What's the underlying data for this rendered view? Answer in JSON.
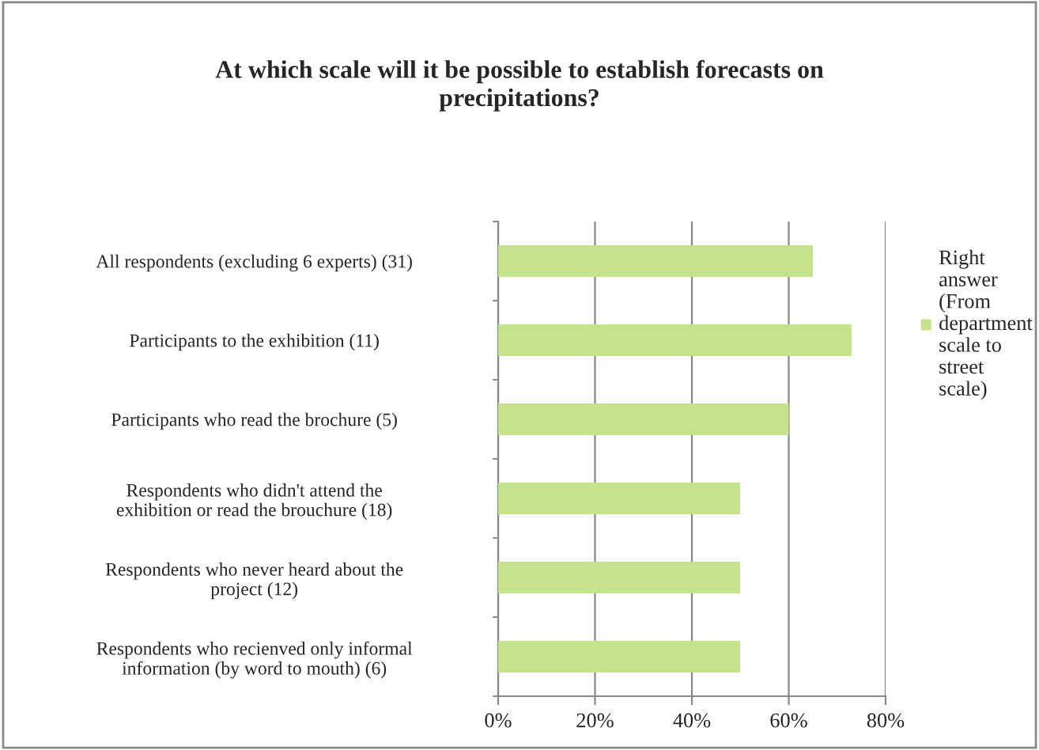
{
  "chart_data": {
    "type": "bar",
    "orientation": "horizontal",
    "title": "At which scale will it be possible to establish forecasts on precipitations?",
    "categories": [
      "All respondents (excluding 6 experts) (31)",
      "Participants to the exhibition (11)",
      "Participants who read the brochure (5)",
      "Respondents who didn't attend the exhibition or read the brouchure (18)",
      "Respondents who never heard about the project (12)",
      "Respondents who recienved only informal information (by word to mouth) (6)"
    ],
    "series": [
      {
        "name": "Right answer (From department scale to street scale)",
        "color": "#c5e38f",
        "values": [
          65,
          73,
          60,
          50,
          50,
          50
        ]
      }
    ],
    "xlim": [
      0,
      80
    ],
    "xticks": [
      {
        "value": 0,
        "label": "0%"
      },
      {
        "value": 20,
        "label": "20%"
      },
      {
        "value": 40,
        "label": "40%"
      },
      {
        "value": 60,
        "label": "60%"
      },
      {
        "value": 80,
        "label": "80%"
      }
    ],
    "grid": "x",
    "legend": "right"
  }
}
